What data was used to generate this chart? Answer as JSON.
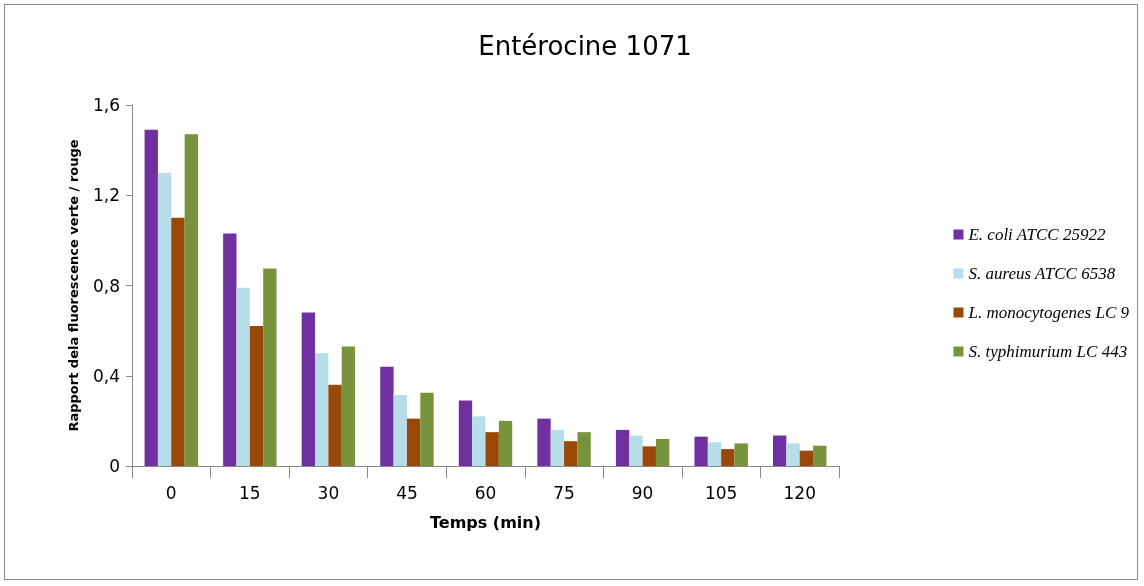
{
  "chart_data": {
    "type": "bar",
    "title": "Entérocine 1071",
    "xlabel": "Temps (min)",
    "ylabel": "Rapport dela fluorescence verte / rouge",
    "categories": [
      "0",
      "15",
      "30",
      "45",
      "60",
      "75",
      "90",
      "105",
      "120"
    ],
    "series": [
      {
        "name": "E. coli ATCC 25922",
        "color": "#7030a0",
        "values": [
          1.49,
          1.03,
          0.68,
          0.44,
          0.29,
          0.21,
          0.16,
          0.13,
          0.135
        ]
      },
      {
        "name": "S. aureus ATCC 6538",
        "color": "#b7dde8",
        "values": [
          1.3,
          0.79,
          0.5,
          0.315,
          0.22,
          0.16,
          0.135,
          0.105,
          0.1
        ]
      },
      {
        "name": "L. monocytogenes LC 9",
        "color": "#984807",
        "values": [
          1.1,
          0.62,
          0.36,
          0.21,
          0.15,
          0.11,
          0.087,
          0.075,
          0.068
        ]
      },
      {
        "name": "S. typhimurium LC 443",
        "color": "#77933c",
        "values": [
          1.47,
          0.875,
          0.53,
          0.325,
          0.2,
          0.15,
          0.12,
          0.1,
          0.09
        ]
      }
    ],
    "ylim": [
      0,
      1.6
    ],
    "yticks": [
      {
        "value": 0,
        "label": "0"
      },
      {
        "value": 0.4,
        "label": "0,4"
      },
      {
        "value": 0.8,
        "label": "0,8"
      },
      {
        "value": 1.2,
        "label": "1,2"
      },
      {
        "value": 1.6,
        "label": "1,6"
      }
    ],
    "grid": false,
    "legend": "right"
  }
}
